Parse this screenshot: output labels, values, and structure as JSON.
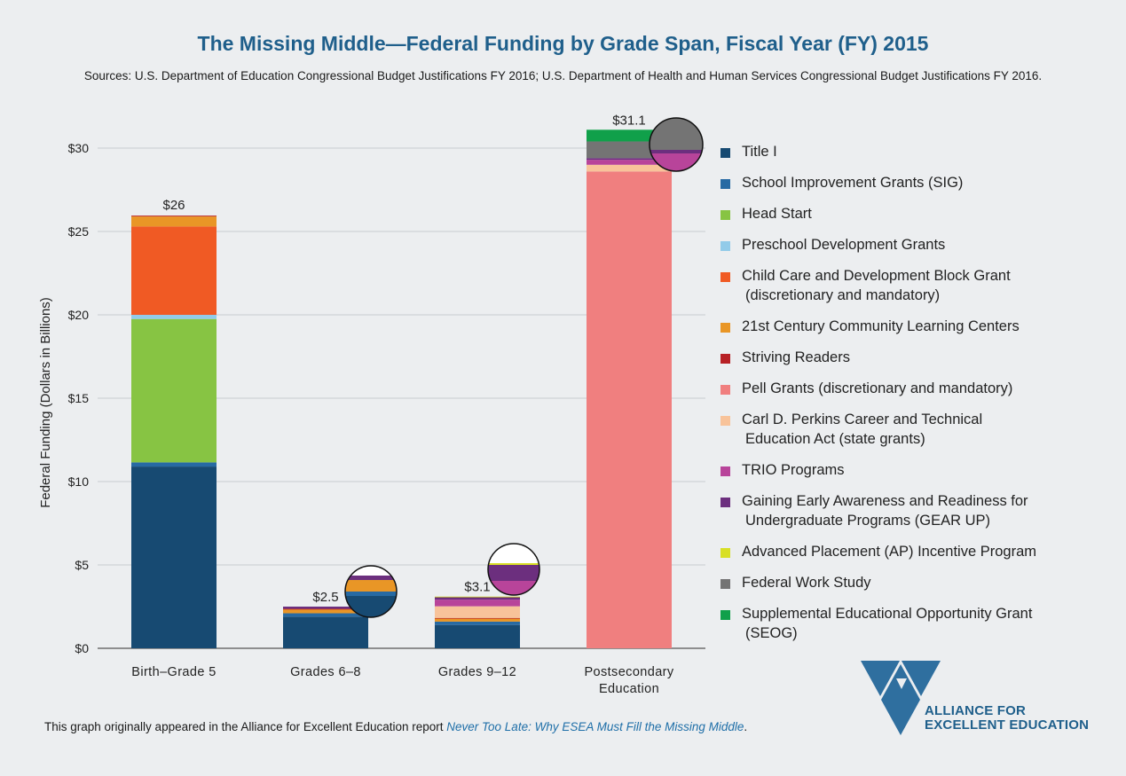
{
  "chart_data": {
    "type": "bar",
    "stacked": true,
    "title": "The Missing Middle—Federal Funding by Grade Span, Fiscal Year (FY) 2015",
    "subtitle": "Sources: U.S. Department of Education Congressional Budget Justifications FY 2016; U.S. Department of Health and Human Services Congressional Budget Justifications FY 2016.",
    "ylabel": "Federal Funding (Dollars in Billions)",
    "xlabel": "",
    "ylim": [
      0,
      30
    ],
    "yticks": [
      0,
      5,
      10,
      15,
      20,
      25,
      30
    ],
    "ytick_labels": [
      "$0",
      "$5",
      "$10",
      "$15",
      "$20",
      "$25",
      "$30"
    ],
    "grid": true,
    "legend_position": "right",
    "categories": [
      [
        "Birth–Grade 5"
      ],
      [
        "Grades 6–8"
      ],
      [
        "Grades 9–12"
      ],
      [
        "Postsecondary",
        "Education"
      ]
    ],
    "totals": [
      26,
      2.5,
      3.1,
      31.1
    ],
    "total_labels": [
      "$26",
      "$2.5",
      "$3.1",
      "$31.1"
    ],
    "series": [
      {
        "name": "Title I",
        "color": "#174a72",
        "values": [
          10.9,
          1.9,
          1.4,
          0
        ]
      },
      {
        "name": "School Improvement Grants (SIG)",
        "color": "#276aa3",
        "values": [
          0.25,
          0.2,
          0.2,
          0
        ]
      },
      {
        "name": "Head Start",
        "color": "#87c443",
        "values": [
          8.6,
          0,
          0,
          0
        ]
      },
      {
        "name": "Preschool Development Grants",
        "color": "#92cbe9",
        "values": [
          0.25,
          0,
          0,
          0
        ]
      },
      {
        "name": "Child Care and Development Block Grant (discretionary and mandatory)",
        "label_lines": [
          "Child Care and Development Block Grant",
          "(discretionary and mandatory)"
        ],
        "color": "#f05a24",
        "values": [
          5.3,
          0,
          0,
          0
        ]
      },
      {
        "name": "21st Century Community Learning Centers",
        "color": "#e99626",
        "values": [
          0.6,
          0.25,
          0.2,
          0
        ]
      },
      {
        "name": "Striving Readers",
        "color": "#b72025",
        "values": [
          0.05,
          0.02,
          0.02,
          0
        ]
      },
      {
        "name": "Pell Grants (discretionary and mandatory)",
        "color": "#f07f7f",
        "values": [
          0,
          0,
          0,
          28.6
        ]
      },
      {
        "name": "Carl D. Perkins Career and Technical Education Act (state grants)",
        "label_lines": [
          "Carl D. Perkins Career and Technical",
          "Education Act (state grants)"
        ],
        "color": "#f8c39a",
        "values": [
          0,
          0,
          0.7,
          0.4
        ]
      },
      {
        "name": "TRIO Programs",
        "color": "#b8449a",
        "values": [
          0,
          0,
          0.4,
          0.3
        ]
      },
      {
        "name": "Gaining Early Awareness and Readiness for Undergraduate Programs (GEAR UP)",
        "label_lines": [
          "Gaining Early Awareness and Readiness for",
          "Undergraduate Programs (GEAR UP)"
        ],
        "color": "#6c2f7e",
        "values": [
          0,
          0.13,
          0.16,
          0.1
        ]
      },
      {
        "name": "Advanced Placement (AP) Incentive Program",
        "color": "#d8df25",
        "values": [
          0,
          0,
          0.02,
          0
        ]
      },
      {
        "name": "Federal Work Study",
        "color": "#747474",
        "values": [
          0,
          0,
          0,
          1.0
        ]
      },
      {
        "name": "Supplemental Educational Opportunity Grant (SEOG)",
        "label_lines": [
          "Supplemental Educational Opportunity Grant",
          "(SEOG)"
        ],
        "color": "#10a04a",
        "values": [
          0,
          0,
          0,
          0.7
        ]
      }
    ]
  },
  "footnote": {
    "text": "This graph originally appeared in the Alliance for Excellent Education report ",
    "link": "Never Too Late: Why ESEA Must Fill the Missing Middle",
    "end": "."
  },
  "logo": {
    "line1": "ALLIANCE FOR",
    "line2": "EXCELLENT EDUCATION",
    "color": "#2f6f9f"
  }
}
